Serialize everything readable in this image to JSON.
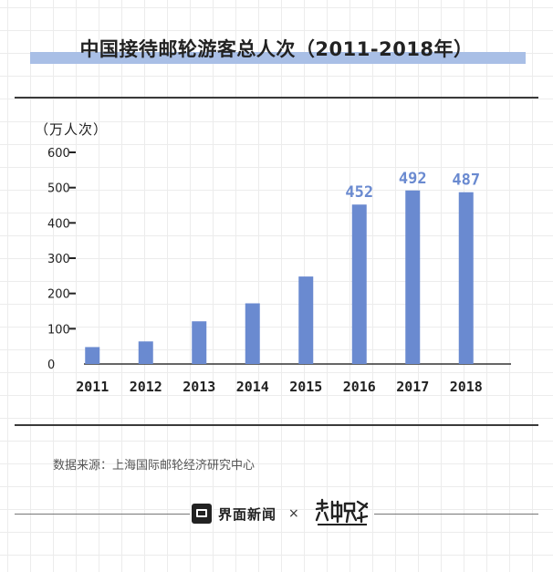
{
  "header": {
    "title": "中国接待邮轮游客总人次（2011-2018年）"
  },
  "unit_label": "（万人次）",
  "source": "数据来源：上海国际邮轮经济研究中心",
  "footer": {
    "brand_name": "界面新闻",
    "separator": "×"
  },
  "colors": {
    "bar": "#6a8ad0",
    "label": "#6a8ad0",
    "title_band": "#a9bfe6"
  },
  "chart_data": {
    "type": "bar",
    "title": "中国接待邮轮游客总人次（2011-2018年）",
    "xlabel": "",
    "ylabel": "（万人次）",
    "categories": [
      "2011",
      "2012",
      "2013",
      "2014",
      "2015",
      "2016",
      "2017",
      "2018"
    ],
    "values": [
      48,
      64,
      121,
      172,
      248,
      452,
      492,
      487
    ],
    "data_labels": [
      "",
      "",
      "",
      "",
      "",
      "452",
      "492",
      "487"
    ],
    "yticks": [
      0,
      100,
      200,
      300,
      400,
      500,
      600
    ],
    "ylim": [
      0,
      600
    ],
    "grid": false,
    "legend": "none"
  }
}
